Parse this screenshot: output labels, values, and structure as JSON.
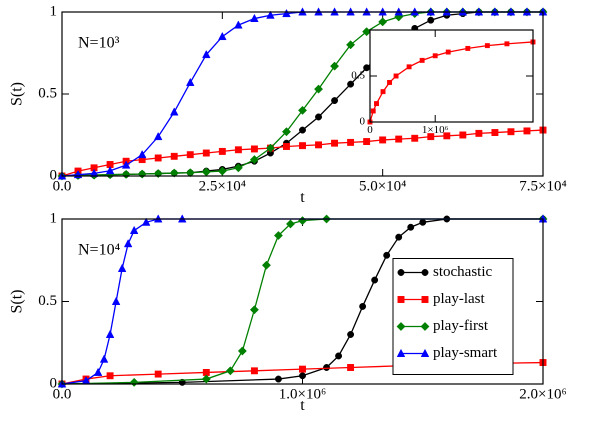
{
  "chart_data": [
    {
      "type": "line",
      "annotation": "N=10³",
      "xlabel": "t",
      "ylabel": "S(t)",
      "xlim": [
        0,
        75000
      ],
      "ylim": [
        0,
        1
      ],
      "xticks": [
        {
          "value": 0,
          "label": "0.0"
        },
        {
          "value": 25000,
          "label": "2.5×10⁴"
        },
        {
          "value": 50000,
          "label": "5.0×10⁴"
        },
        {
          "value": 75000,
          "label": "7.5×10⁴"
        }
      ],
      "yticks": [
        0,
        0.5,
        1
      ],
      "x": [
        0,
        2500,
        5000,
        7500,
        10000,
        12500,
        15000,
        17500,
        20000,
        22500,
        25000,
        27500,
        30000,
        32500,
        35000,
        37500,
        40000,
        42500,
        45000,
        47500,
        50000,
        52500,
        55000,
        57500,
        60000,
        62500,
        65000,
        67500,
        70000,
        72500,
        75000
      ],
      "series": [
        {
          "name": "stochastic",
          "color": "#000000",
          "marker": "circle",
          "values": [
            0,
            0.003,
            0.005,
            0.008,
            0.01,
            0.012,
            0.015,
            0.018,
            0.02,
            0.03,
            0.04,
            0.06,
            0.09,
            0.14,
            0.2,
            0.28,
            0.36,
            0.46,
            0.56,
            0.66,
            0.75,
            0.83,
            0.9,
            0.95,
            0.98,
            0.99,
            1,
            1,
            1,
            1,
            1
          ]
        },
        {
          "name": "play-last",
          "color": "#ff0000",
          "marker": "square",
          "values": [
            0,
            0.03,
            0.05,
            0.07,
            0.09,
            0.1,
            0.11,
            0.12,
            0.13,
            0.14,
            0.15,
            0.16,
            0.165,
            0.17,
            0.18,
            0.185,
            0.19,
            0.2,
            0.205,
            0.21,
            0.22,
            0.225,
            0.23,
            0.24,
            0.245,
            0.25,
            0.26,
            0.265,
            0.27,
            0.275,
            0.28
          ]
        },
        {
          "name": "play-first",
          "color": "#008000",
          "marker": "diamond",
          "values": [
            0,
            0.003,
            0.005,
            0.008,
            0.01,
            0.012,
            0.015,
            0.018,
            0.02,
            0.025,
            0.03,
            0.05,
            0.1,
            0.17,
            0.27,
            0.4,
            0.53,
            0.67,
            0.8,
            0.88,
            0.94,
            0.97,
            0.99,
            1,
            1,
            1,
            1,
            1,
            1,
            1,
            1
          ]
        },
        {
          "name": "play-smart",
          "color": "#0000ff",
          "marker": "triangle",
          "values": [
            0,
            0.008,
            0.016,
            0.032,
            0.066,
            0.13,
            0.24,
            0.39,
            0.57,
            0.74,
            0.85,
            0.92,
            0.96,
            0.98,
            0.99,
            1,
            1,
            1,
            1,
            1,
            1,
            1,
            1,
            1,
            1,
            1,
            1,
            1,
            1,
            1,
            1
          ]
        }
      ]
    },
    {
      "type": "line",
      "xlim": [
        0,
        2500000
      ],
      "ylim": [
        0,
        1
      ],
      "xticks": [
        0,
        {
          "value": 1000000,
          "label": "1×10⁶"
        }
      ],
      "yticks": [
        0,
        0.5
      ],
      "x": [
        0,
        50000,
        100000,
        200000,
        300000,
        400000,
        600000,
        800000,
        1000000,
        1200000,
        1500000,
        1800000,
        2100000,
        2500000
      ],
      "series": [
        {
          "name": "play-last",
          "color": "#ff0000",
          "marker": "square",
          "values": [
            0,
            0.12,
            0.2,
            0.33,
            0.43,
            0.5,
            0.6,
            0.67,
            0.72,
            0.76,
            0.8,
            0.83,
            0.85,
            0.87
          ]
        }
      ]
    },
    {
      "type": "line",
      "annotation": "N=10⁴",
      "xlabel": "t",
      "ylabel": "S(t)",
      "legend": "center right",
      "xlim": [
        0,
        2000000
      ],
      "ylim": [
        0,
        1
      ],
      "xticks": [
        {
          "value": 0,
          "label": "0.0"
        },
        {
          "value": 1000000,
          "label": "1.0×10⁶"
        },
        {
          "value": 2000000,
          "label": "2.0×10⁶"
        }
      ],
      "yticks": [
        0,
        0.5,
        1
      ],
      "series": [
        {
          "name": "stochastic",
          "color": "#000000",
          "marker": "circle",
          "x": [
            0,
            500000,
            900000,
            1000000,
            1100000,
            1150000,
            1200000,
            1250000,
            1300000,
            1350000,
            1400000,
            1450000,
            1500000,
            1600000,
            2000000
          ],
          "values": [
            0,
            0.01,
            0.03,
            0.05,
            0.1,
            0.17,
            0.3,
            0.47,
            0.63,
            0.78,
            0.89,
            0.95,
            0.98,
            1,
            1
          ]
        },
        {
          "name": "play-last",
          "color": "#ff0000",
          "marker": "square",
          "x": [
            0,
            100000,
            200000,
            400000,
            600000,
            800000,
            1000000,
            1200000,
            1400000,
            1600000,
            1800000,
            2000000
          ],
          "values": [
            0,
            0.03,
            0.05,
            0.06,
            0.07,
            0.08,
            0.09,
            0.1,
            0.11,
            0.12,
            0.125,
            0.13
          ]
        },
        {
          "name": "play-first",
          "color": "#008000",
          "marker": "diamond",
          "x": [
            0,
            300000,
            600000,
            700000,
            750000,
            800000,
            850000,
            900000,
            950000,
            1000000,
            1100000,
            2000000
          ],
          "values": [
            0,
            0.01,
            0.03,
            0.08,
            0.2,
            0.45,
            0.72,
            0.9,
            0.97,
            0.99,
            1,
            1
          ]
        },
        {
          "name": "play-smart",
          "color": "#0000ff",
          "marker": "triangle",
          "x": [
            0,
            100000,
            150000,
            175000,
            200000,
            225000,
            250000,
            275000,
            300000,
            350000,
            400000,
            500000,
            2000000
          ],
          "values": [
            0,
            0.02,
            0.07,
            0.15,
            0.3,
            0.5,
            0.7,
            0.85,
            0.93,
            0.98,
            1,
            1,
            1
          ]
        }
      ]
    }
  ]
}
